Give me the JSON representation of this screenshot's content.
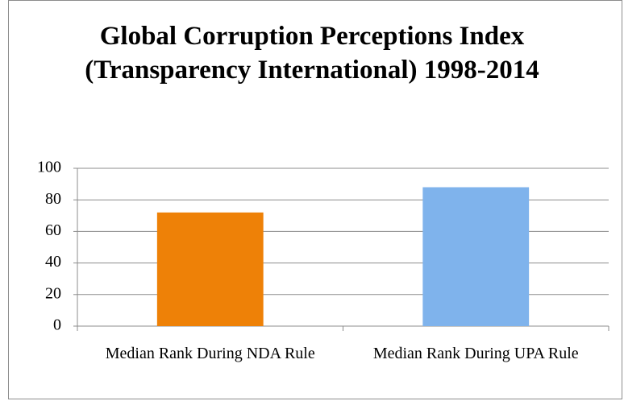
{
  "chart_data": {
    "type": "bar",
    "title": "Global Corruption Perceptions Index (Transparency International) 1998-2014",
    "categories": [
      "Median Rank During NDA Rule",
      "Median Rank During UPA Rule"
    ],
    "values": [
      72,
      88
    ],
    "colors": [
      "#ee8107",
      "#7fb3ec"
    ],
    "ylim": [
      0,
      100
    ],
    "yticks": [
      0,
      20,
      40,
      60,
      80,
      100
    ],
    "grid": true
  }
}
